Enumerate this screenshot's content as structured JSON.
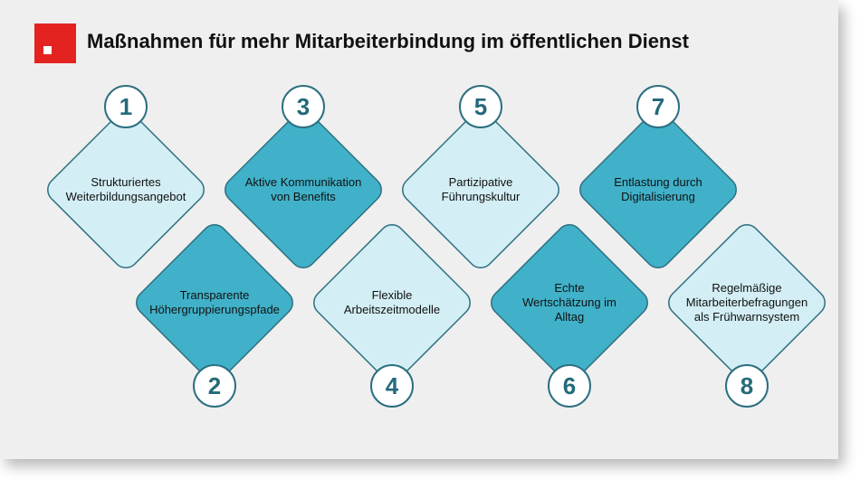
{
  "title": "Maßnahmen für mehr Mitarbeiterbindung im öffentlichen Dienst",
  "colors": {
    "light": "#d3eef4",
    "dark": "#40b1c9",
    "stroke": "#2c6f80",
    "number": "#246a7a",
    "brand": "#e42320"
  },
  "items": [
    {
      "number": "1",
      "lines": [
        "Strukturiertes",
        "Weiterbildungsangebot"
      ],
      "style": "light",
      "row": "top"
    },
    {
      "number": "2",
      "lines": [
        "Transparente",
        "Höhergruppierungspfade"
      ],
      "style": "dark",
      "row": "bottom"
    },
    {
      "number": "3",
      "lines": [
        "Aktive Kommunikation",
        "von Benefits"
      ],
      "style": "dark",
      "row": "top"
    },
    {
      "number": "4",
      "lines": [
        "Flexible",
        "Arbeitszeitmodelle"
      ],
      "style": "light",
      "row": "bottom"
    },
    {
      "number": "5",
      "lines": [
        "Partizipative",
        "Führungskultur"
      ],
      "style": "light",
      "row": "top"
    },
    {
      "number": "6",
      "lines": [
        "Echte",
        "Wertschätzung im",
        "Alltag"
      ],
      "style": "dark",
      "row": "bottom"
    },
    {
      "number": "7",
      "lines": [
        "Entlastung durch",
        "Digitalisierung"
      ],
      "style": "dark",
      "row": "top"
    },
    {
      "number": "8",
      "lines": [
        "Regelmäßige",
        "Mitarbeiterbefragungen",
        "als Frühwarnsystem"
      ],
      "style": "light",
      "row": "bottom"
    }
  ]
}
